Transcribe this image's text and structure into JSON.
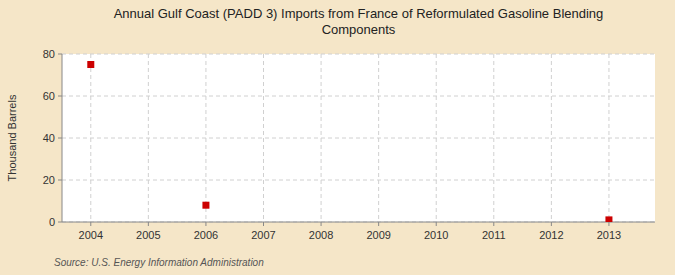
{
  "chart_data": {
    "type": "scatter",
    "title": "Annual Gulf Coast (PADD 3) Imports from France of Reformulated Gasoline Blending\nComponents",
    "ylabel": "Thousand Barrels",
    "source": "Source: U.S. Energy Information Administration",
    "x": [
      2004,
      2006,
      2013
    ],
    "values": [
      75,
      8,
      1
    ],
    "color": "#cc0000",
    "marker": "square",
    "xlim": [
      2003.5,
      2013.8
    ],
    "ylim": [
      0,
      80
    ],
    "xticks": [
      2004,
      2005,
      2006,
      2007,
      2008,
      2009,
      2010,
      2011,
      2012,
      2013
    ],
    "yticks": [
      0,
      20,
      40,
      60,
      80
    ],
    "grid": true
  }
}
